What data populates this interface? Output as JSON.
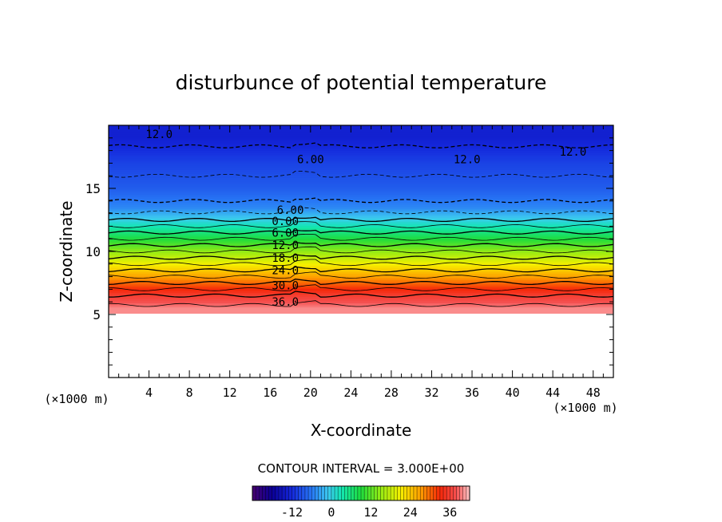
{
  "chart_data": {
    "type": "heatmap",
    "title": "disturbunce of potential temperature",
    "xlabel": "X-coordinate",
    "ylabel": "Z-coordinate",
    "x_unit": "(×1000 m)",
    "z_unit": "(×1000 m)",
    "xlim": [
      0,
      50
    ],
    "ylim": [
      0,
      20
    ],
    "x_ticks": [
      4,
      8,
      12,
      16,
      20,
      24,
      28,
      32,
      36,
      40,
      44,
      48
    ],
    "y_ticks": [
      5,
      10,
      15
    ],
    "contour_interval_text": "CONTOUR INTERVAL = 3.000E+00",
    "contour_interval": 3.0,
    "contour_labels": [
      {
        "text": "12.0",
        "x": 5.0,
        "z": 19.3
      },
      {
        "text": "6.00",
        "x": 20.0,
        "z": 17.3
      },
      {
        "text": "12.0",
        "x": 35.5,
        "z": 17.3
      },
      {
        "text": "12.0",
        "x": 46.0,
        "z": 17.9
      },
      {
        "text": "6.00",
        "x": 18.0,
        "z": 13.3
      },
      {
        "text": "0.00",
        "x": 17.5,
        "z": 12.4
      },
      {
        "text": "6.00",
        "x": 17.5,
        "z": 11.5
      },
      {
        "text": "12.0",
        "x": 17.5,
        "z": 10.5
      },
      {
        "text": "18.0",
        "x": 17.5,
        "z": 9.5
      },
      {
        "text": "24.0",
        "x": 17.5,
        "z": 8.5
      },
      {
        "text": "30.0",
        "x": 17.5,
        "z": 7.3
      },
      {
        "text": "36.0",
        "x": 17.5,
        "z": 6.0
      }
    ],
    "field_summary": [
      {
        "z": 19.0,
        "value": -13
      },
      {
        "z": 17.0,
        "value": -10
      },
      {
        "z": 15.0,
        "value": -8
      },
      {
        "z": 13.5,
        "value": -5
      },
      {
        "z": 12.5,
        "value": 0
      },
      {
        "z": 11.5,
        "value": 6
      },
      {
        "z": 10.5,
        "value": 12
      },
      {
        "z": 9.5,
        "value": 18
      },
      {
        "z": 8.5,
        "value": 24
      },
      {
        "z": 7.5,
        "value": 30
      },
      {
        "z": 6.5,
        "value": 36
      },
      {
        "z": 5.5,
        "value": 40
      }
    ],
    "colorbar": {
      "min": -24,
      "max": 42,
      "ticks": [
        -12,
        0,
        12,
        24,
        36
      ],
      "tick_labels": [
        "-12",
        "0",
        "12",
        "24",
        "36"
      ]
    }
  }
}
